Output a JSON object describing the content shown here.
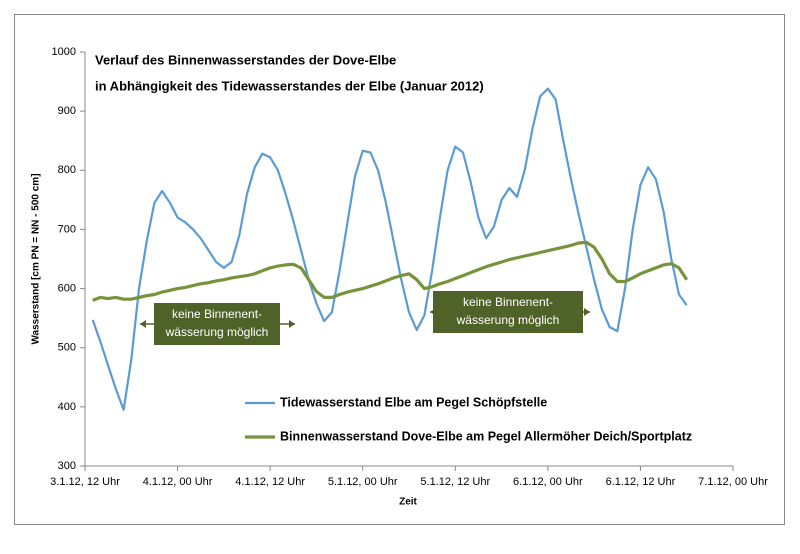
{
  "chart_data": {
    "type": "line",
    "title": "Verlauf des Binnenwasserstandes  der Dove-Elbe",
    "subtitle": "in Abhängigkeit des Tidewasserstandes  der Elbe (Januar 2012)",
    "xlabel": "Zeit",
    "ylabel": "Wasserstand [cm PN = NN - 500 cm]",
    "x": [
      "2012-01-03T13:00",
      "2012-01-03T14:00",
      "2012-01-03T15:00",
      "2012-01-03T16:00",
      "2012-01-03T17:00",
      "2012-01-03T18:00",
      "2012-01-03T19:00",
      "2012-01-03T20:00",
      "2012-01-03T21:00",
      "2012-01-03T22:00",
      "2012-01-03T23:00",
      "2012-01-04T00:00",
      "2012-01-04T01:00",
      "2012-01-04T02:00",
      "2012-01-04T03:00",
      "2012-01-04T04:00",
      "2012-01-04T05:00",
      "2012-01-04T06:00",
      "2012-01-04T07:00",
      "2012-01-04T08:00",
      "2012-01-04T09:00",
      "2012-01-04T10:00",
      "2012-01-04T11:00",
      "2012-01-04T12:00",
      "2012-01-04T13:00",
      "2012-01-04T14:00",
      "2012-01-04T15:00",
      "2012-01-04T16:00",
      "2012-01-04T17:00",
      "2012-01-04T18:00",
      "2012-01-04T19:00",
      "2012-01-04T20:00",
      "2012-01-04T21:00",
      "2012-01-04T22:00",
      "2012-01-04T23:00",
      "2012-01-05T00:00",
      "2012-01-05T01:00",
      "2012-01-05T02:00",
      "2012-01-05T03:00",
      "2012-01-05T04:00",
      "2012-01-05T05:00",
      "2012-01-05T06:00",
      "2012-01-05T07:00",
      "2012-01-05T08:00",
      "2012-01-05T09:00",
      "2012-01-05T10:00",
      "2012-01-05T11:00",
      "2012-01-05T12:00",
      "2012-01-05T13:00",
      "2012-01-05T14:00",
      "2012-01-05T15:00",
      "2012-01-05T16:00",
      "2012-01-05T17:00",
      "2012-01-05T18:00",
      "2012-01-05T19:00",
      "2012-01-05T20:00",
      "2012-01-05T21:00",
      "2012-01-05T22:00",
      "2012-01-05T23:00",
      "2012-01-06T00:00",
      "2012-01-06T01:00",
      "2012-01-06T02:00",
      "2012-01-06T03:00",
      "2012-01-06T04:00",
      "2012-01-06T05:00",
      "2012-01-06T06:00",
      "2012-01-06T07:00",
      "2012-01-06T08:00",
      "2012-01-06T09:00",
      "2012-01-06T10:00",
      "2012-01-06T11:00",
      "2012-01-06T12:00",
      "2012-01-06T13:00",
      "2012-01-06T14:00",
      "2012-01-06T15:00",
      "2012-01-06T16:00",
      "2012-01-06T17:00",
      "2012-01-06T18:00"
    ],
    "series": [
      {
        "name": "Tidewasserstand Elbe am Pegel Schöpfstelle",
        "color": "#5b9bd5",
        "values": [
          547,
          510,
          470,
          430,
          395,
          480,
          600,
          680,
          745,
          765,
          745,
          720,
          712,
          700,
          685,
          665,
          645,
          635,
          645,
          690,
          760,
          805,
          828,
          822,
          800,
          760,
          715,
          665,
          615,
          575,
          545,
          560,
          630,
          710,
          790,
          833,
          830,
          800,
          745,
          680,
          615,
          560,
          530,
          555,
          630,
          720,
          800,
          840,
          830,
          780,
          720,
          685,
          705,
          750,
          770,
          755,
          800,
          870,
          925,
          938,
          920,
          850,
          785,
          725,
          670,
          615,
          565,
          535,
          528,
          600,
          700,
          775,
          805,
          785,
          730,
          650,
          590,
          572
        ]
      },
      {
        "name": "Binnenwasserstand Dove-Elbe am Pegel Allermöher Deich/Sportplatz",
        "color": "#77933c",
        "values": [
          580,
          585,
          583,
          585,
          582,
          582,
          585,
          588,
          590,
          594,
          597,
          600,
          602,
          605,
          608,
          610,
          613,
          615,
          618,
          620,
          622,
          625,
          630,
          635,
          638,
          640,
          641,
          635,
          615,
          595,
          585,
          585,
          590,
          594,
          597,
          600,
          604,
          608,
          613,
          618,
          622,
          625,
          615,
          600,
          603,
          608,
          612,
          617,
          622,
          627,
          632,
          637,
          641,
          645,
          649,
          652,
          655,
          658,
          661,
          664,
          667,
          670,
          673,
          677,
          678,
          670,
          650,
          625,
          612,
          612,
          618,
          625,
          630,
          635,
          640,
          642,
          635,
          615
        ]
      }
    ],
    "xlim": [
      "2012-01-03T12:00",
      "2012-01-07T00:00"
    ],
    "xticks": [
      {
        "value": "2012-01-03T12:00",
        "label": "3.1.12, 12 Uhr"
      },
      {
        "value": "2012-01-04T00:00",
        "label": "4.1.12, 00 Uhr"
      },
      {
        "value": "2012-01-04T12:00",
        "label": "4.1.12, 12 Uhr"
      },
      {
        "value": "2012-01-05T00:00",
        "label": "5.1.12, 00 Uhr"
      },
      {
        "value": "2012-01-05T12:00",
        "label": "5.1.12, 12 Uhr"
      },
      {
        "value": "2012-01-06T00:00",
        "label": "6.1.12, 00 Uhr"
      },
      {
        "value": "2012-01-06T12:00",
        "label": "6.1.12, 12 Uhr"
      },
      {
        "value": "2012-01-07T00:00",
        "label": "7.1.12, 00 Uhr"
      }
    ],
    "ylim": [
      300,
      1000
    ],
    "yticks": [
      300,
      400,
      500,
      600,
      700,
      800,
      900,
      1000
    ],
    "annotations": [
      [
        "keine Binnenent-",
        "wässerung möglich"
      ],
      [
        "keine Binnenent-",
        "wässerung möglich"
      ]
    ]
  }
}
